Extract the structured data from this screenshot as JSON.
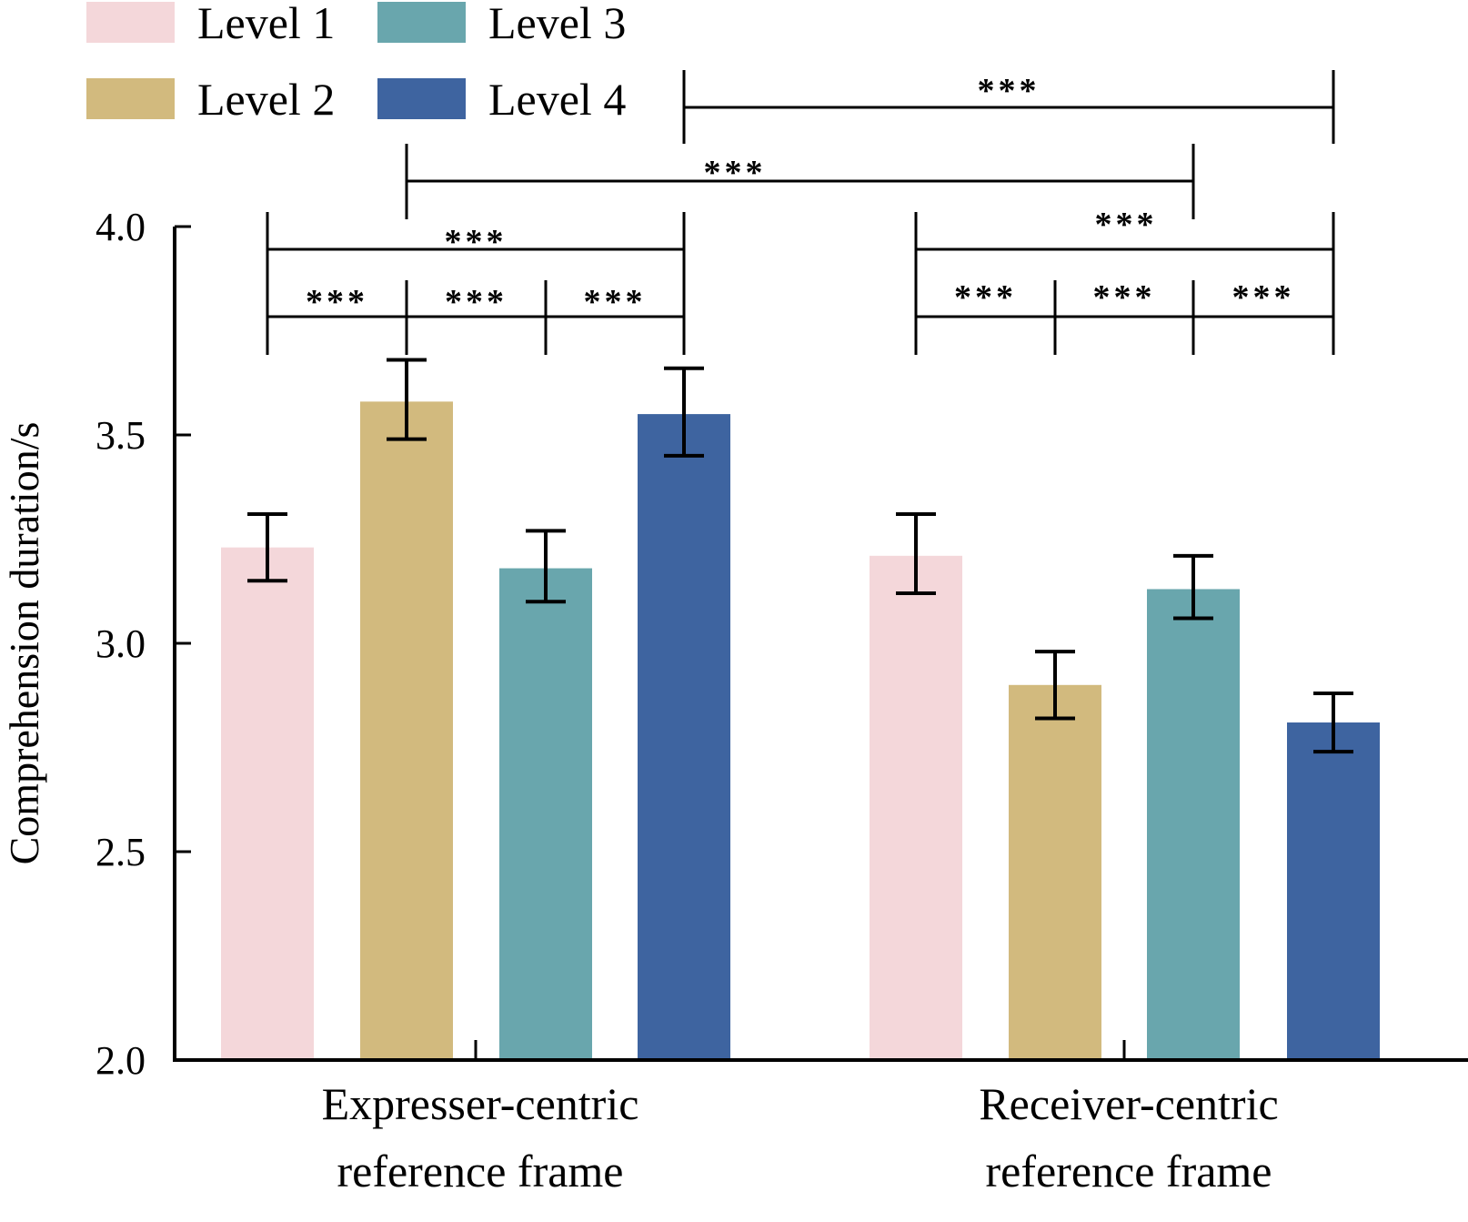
{
  "chart_data": {
    "type": "bar",
    "title": "",
    "xlabel": "",
    "ylabel": "Comprehension duration/s",
    "ylim": [
      2.0,
      4.0
    ],
    "yticks": [
      2.0,
      2.5,
      3.0,
      3.5,
      4.0
    ],
    "ytick_labels": [
      "2.0",
      "2.5",
      "3.0",
      "3.5",
      "4.0"
    ],
    "grid": false,
    "legend_position": "top-left",
    "categories": [
      [
        "Expresser-centric",
        "reference frame"
      ],
      [
        "Receiver-centric",
        "reference frame"
      ]
    ],
    "series": [
      {
        "name": "Level 1",
        "color": "#F4D7DA",
        "values": [
          3.23,
          3.21
        ],
        "error_low": [
          3.15,
          3.12
        ],
        "error_high": [
          3.31,
          3.31
        ]
      },
      {
        "name": "Level 2",
        "color": "#D2BA7E",
        "values": [
          3.58,
          2.9
        ],
        "error_low": [
          3.49,
          2.82
        ],
        "error_high": [
          3.68,
          2.98
        ]
      },
      {
        "name": "Level 3",
        "color": "#69A6AD",
        "values": [
          3.18,
          3.13
        ],
        "error_low": [
          3.1,
          3.06
        ],
        "error_high": [
          3.27,
          3.21
        ]
      },
      {
        "name": "Level 4",
        "color": "#3E64A0",
        "values": [
          3.55,
          2.81
        ],
        "error_low": [
          3.45,
          2.74
        ],
        "error_high": [
          3.66,
          2.88
        ]
      }
    ],
    "significance": [
      {
        "group": 0,
        "from": 0,
        "to": 1,
        "label": "***",
        "tier": 0
      },
      {
        "group": 0,
        "from": 1,
        "to": 2,
        "label": "***",
        "tier": 0
      },
      {
        "group": 0,
        "from": 2,
        "to": 3,
        "label": "***",
        "tier": 0
      },
      {
        "group": 0,
        "from": 0,
        "to": 3,
        "label": "***",
        "tier": 1
      },
      {
        "group": 1,
        "from": 0,
        "to": 1,
        "label": "***",
        "tier": 0
      },
      {
        "group": 1,
        "from": 1,
        "to": 2,
        "label": "***",
        "tier": 0
      },
      {
        "group": 1,
        "from": 2,
        "to": 3,
        "label": "***",
        "tier": 0
      },
      {
        "group": 1,
        "from": 0,
        "to": 3,
        "label": "***",
        "tier": 1
      },
      {
        "cross": true,
        "from": [
          0,
          1
        ],
        "to": [
          1,
          2
        ],
        "label": "***",
        "tier": 2
      },
      {
        "cross": true,
        "from": [
          0,
          3
        ],
        "to": [
          1,
          3
        ],
        "label": "***",
        "tier": 3
      }
    ]
  }
}
